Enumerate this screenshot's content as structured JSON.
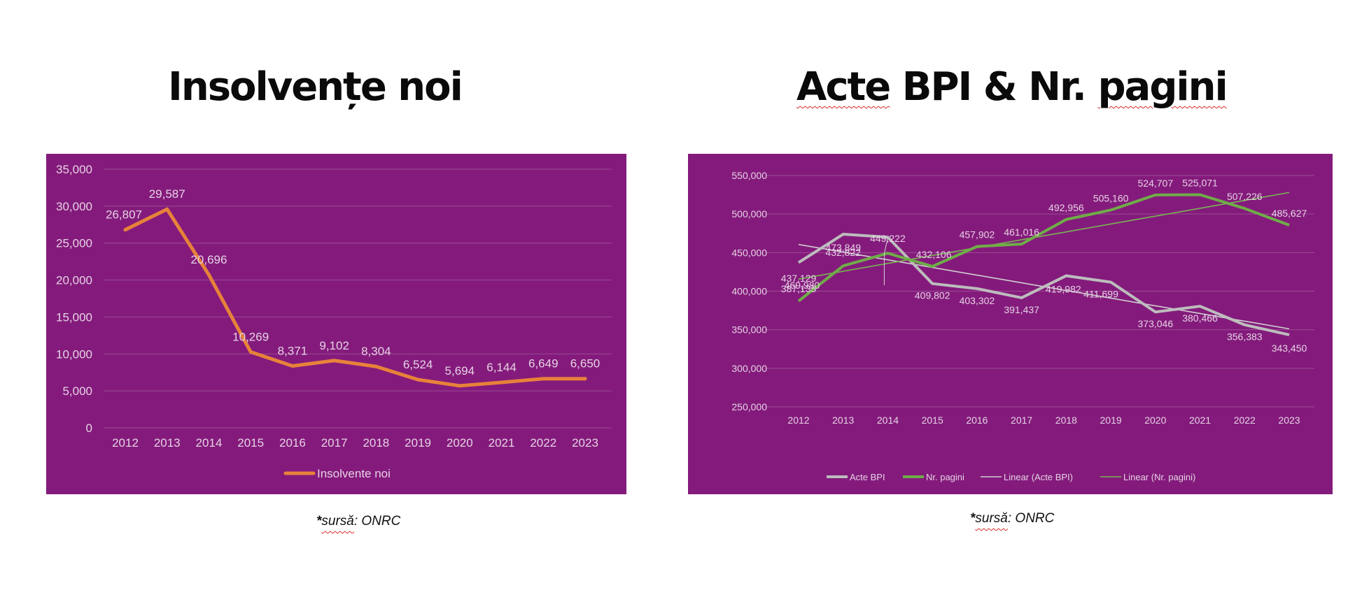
{
  "slides": {
    "left_title": "Insolvențe noi",
    "right_title_part1": "Acte",
    "right_title_part2": " BPI & Nr. ",
    "right_title_part3": "pagini",
    "left_source_star": "*",
    "left_source_word": "sursă",
    "left_source_rest": ": ONRC",
    "right_source_star": "*",
    "right_source_word": "sursă",
    "right_source_rest": ": ONRC"
  },
  "colors": {
    "panel": "#841b7c",
    "gridline": "#9b4a94",
    "axis_text": "#e6d2e4",
    "orange": "#e7823a",
    "gray": "#bdbdbd",
    "green": "#6fad47",
    "trend_gray": "#d0d0d0",
    "trend_green": "#79b552"
  },
  "chart_data": [
    {
      "type": "line",
      "title": "",
      "xlabel": "",
      "ylabel": "",
      "categories": [
        "2012",
        "2013",
        "2014",
        "2015",
        "2016",
        "2017",
        "2018",
        "2019",
        "2020",
        "2021",
        "2022",
        "2023"
      ],
      "series": [
        {
          "name": "Insolvente noi",
          "values": [
            26807,
            29587,
            20696,
            10269,
            8371,
            9102,
            8304,
            6524,
            5694,
            6144,
            6649,
            6650
          ],
          "labels": [
            "26,807",
            "29,587",
            "20,696",
            "10,269",
            "8,371",
            "9,102",
            "8,304",
            "6,524",
            "5,694",
            "6,144",
            "6,649",
            "6,650"
          ]
        }
      ],
      "ylim": [
        0,
        35000
      ],
      "yticks": [
        "0",
        "5,000",
        "10,000",
        "15,000",
        "20,000",
        "25,000",
        "30,000",
        "35,000"
      ],
      "grid": true,
      "legend": "bottom"
    },
    {
      "type": "line",
      "title": "",
      "xlabel": "",
      "ylabel": "",
      "categories": [
        "2012",
        "2013",
        "2014",
        "2015",
        "2016",
        "2017",
        "2018",
        "2019",
        "2020",
        "2021",
        "2022",
        "2023"
      ],
      "series": [
        {
          "name": "Acte BPI",
          "values": [
            437129,
            473849,
            469980,
            409802,
            403302,
            391437,
            419982,
            411699,
            373046,
            380466,
            356383,
            343450
          ],
          "labels": [
            "437,129",
            "473,849",
            "469,980",
            "409,802",
            "403,302",
            "391,437",
            "419,982",
            "411,699",
            "373,046",
            "380,466",
            "356,383",
            "343,450"
          ]
        },
        {
          "name": "Nr. pagini",
          "values": [
            387135,
            432822,
            449222,
            432106,
            457902,
            461016,
            492956,
            505160,
            524707,
            525071,
            507226,
            485627
          ],
          "labels": [
            "387,135",
            "432,822",
            "449,222",
            "432,106",
            "457,902",
            "461,016",
            "492,956",
            "505,160",
            "524,707",
            "525,071",
            "507,226",
            "485,627"
          ]
        },
        {
          "name": "Linear (Acte BPI)",
          "trend_of": "Acte BPI"
        },
        {
          "name": "Linear (Nr. pagini)",
          "trend_of": "Nr. pagini"
        }
      ],
      "ylim": [
        250000,
        550000
      ],
      "yticks": [
        "250,000",
        "300,000",
        "350,000",
        "400,000",
        "450,000",
        "500,000",
        "550,000"
      ],
      "grid": true,
      "legend": "bottom"
    }
  ]
}
